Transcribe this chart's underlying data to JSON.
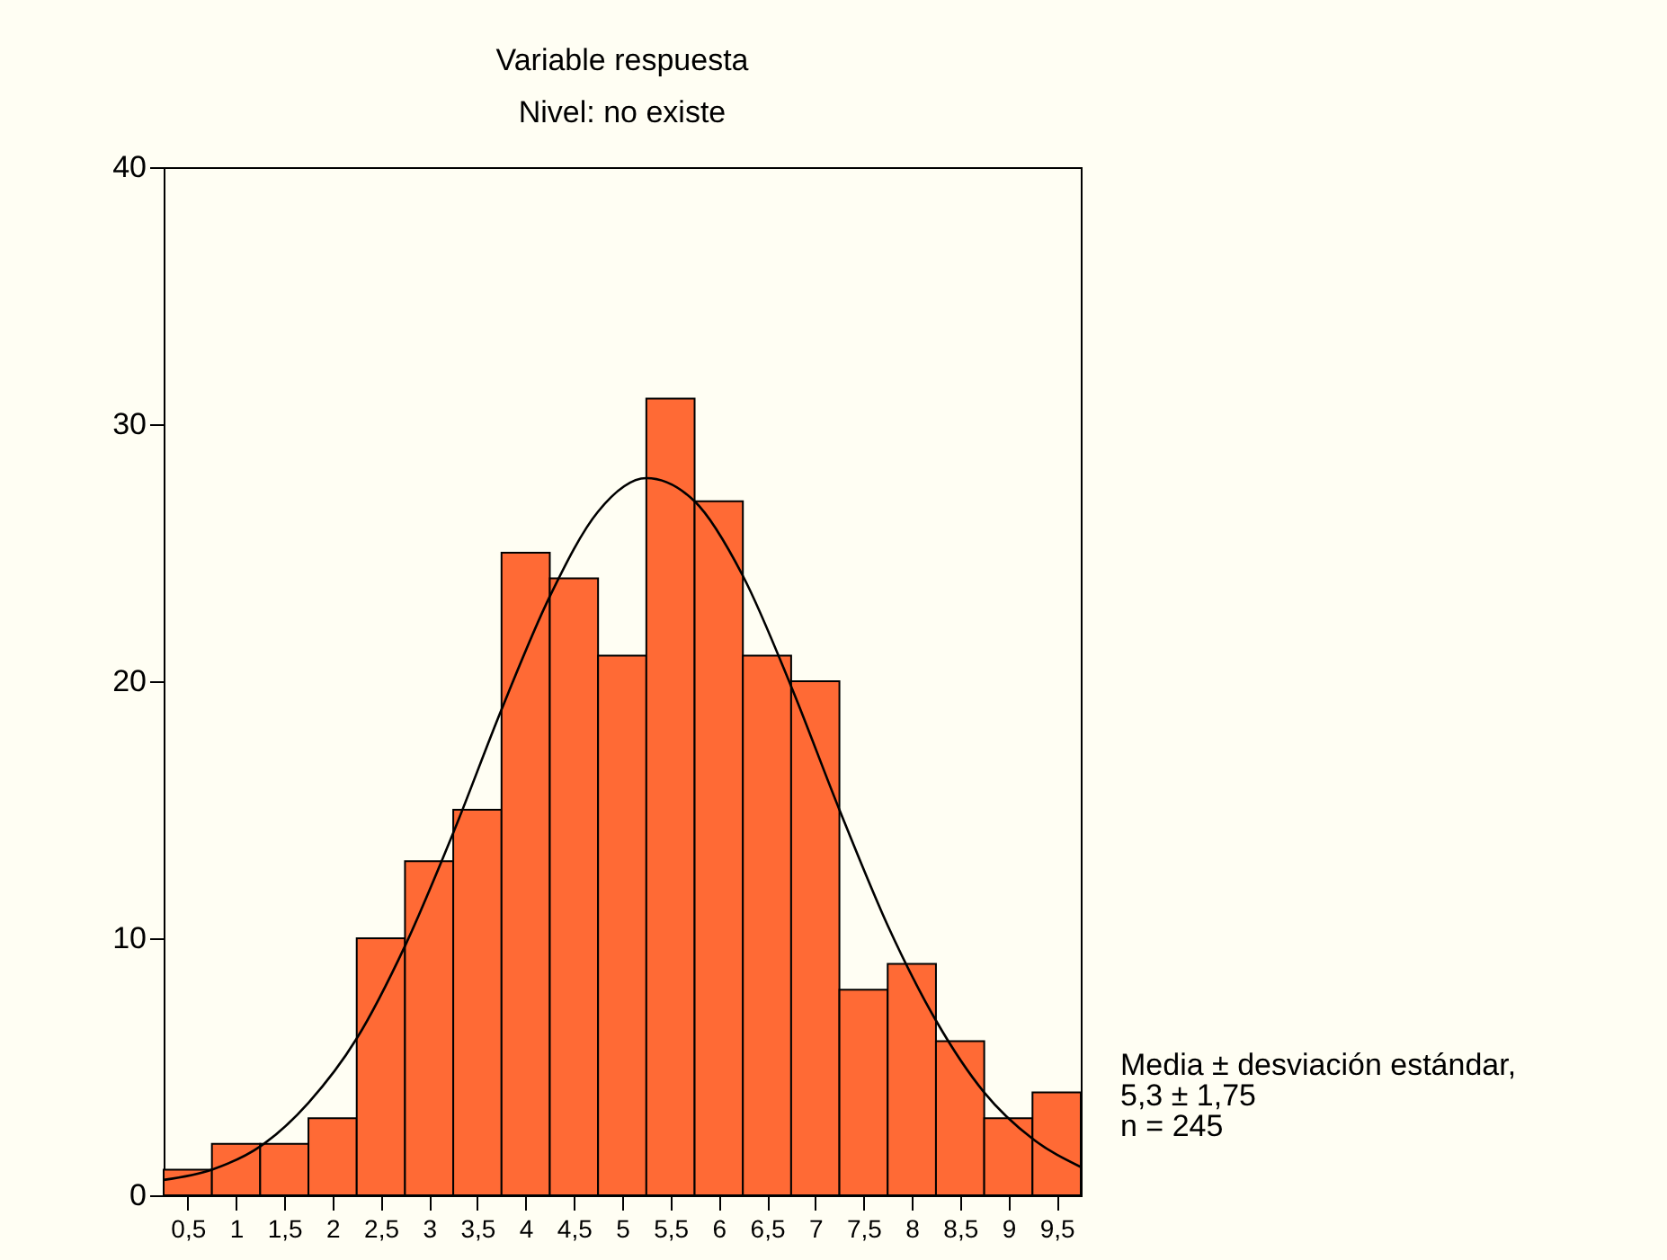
{
  "chart_data": {
    "type": "histogram",
    "title": "Variable respuesta",
    "subtitle": "Nivel: no existe",
    "bins": [
      0.25,
      0.75,
      1.25,
      1.75,
      2.25,
      2.75,
      3.25,
      3.75,
      4.25,
      4.75,
      5.25,
      5.75,
      6.25,
      6.75,
      7.25,
      7.75,
      8.25,
      8.75,
      9.25,
      9.75
    ],
    "values": [
      1,
      2,
      2,
      3,
      10,
      13,
      15,
      25,
      24,
      21,
      31,
      27,
      21,
      20,
      8,
      9,
      6,
      3,
      4
    ],
    "color": "#ff6a35",
    "series": [
      {
        "type": "line",
        "color": "#000000",
        "x": [
          0.25,
          0.75,
          1.25,
          1.75,
          2.25,
          2.75,
          3.25,
          3.75,
          4.25,
          4.75,
          5.25,
          5.75,
          6.25,
          6.75,
          7.25,
          7.75,
          8.25,
          8.75,
          9.25,
          9.75
        ],
        "values": [
          0.6,
          1,
          1.9,
          3.6,
          6.1,
          9.7,
          14.1,
          18.9,
          23.3,
          26.6,
          27.9,
          27,
          24.1,
          19.8,
          15,
          10.5,
          6.8,
          4,
          2.2,
          1.1
        ]
      }
    ],
    "xlim": [
      0.25,
      9.75
    ],
    "xticks": [
      {
        "value": 0.5,
        "label": "0,5"
      },
      1,
      {
        "value": 1.5,
        "label": "1,5"
      },
      2,
      {
        "value": 2.5,
        "label": "2,5"
      },
      3,
      {
        "value": 3.5,
        "label": "3,5"
      },
      4,
      {
        "value": 4.5,
        "label": "4,5"
      },
      5,
      {
        "value": 5.5,
        "label": "5,5"
      },
      6,
      {
        "value": 6.5,
        "label": "6,5"
      },
      7,
      {
        "value": 7.5,
        "label": "7,5"
      },
      8,
      {
        "value": 8.5,
        "label": "8,5"
      },
      9,
      {
        "value": 9.5,
        "label": "9,5"
      }
    ],
    "ylim": [
      0,
      40
    ],
    "yticks": [
      0,
      10,
      20,
      30,
      40
    ],
    "grid": false,
    "annotations": [
      "Media ± desviación estándar,",
      "5,3 ± 1,75",
      "n = 245"
    ]
  }
}
